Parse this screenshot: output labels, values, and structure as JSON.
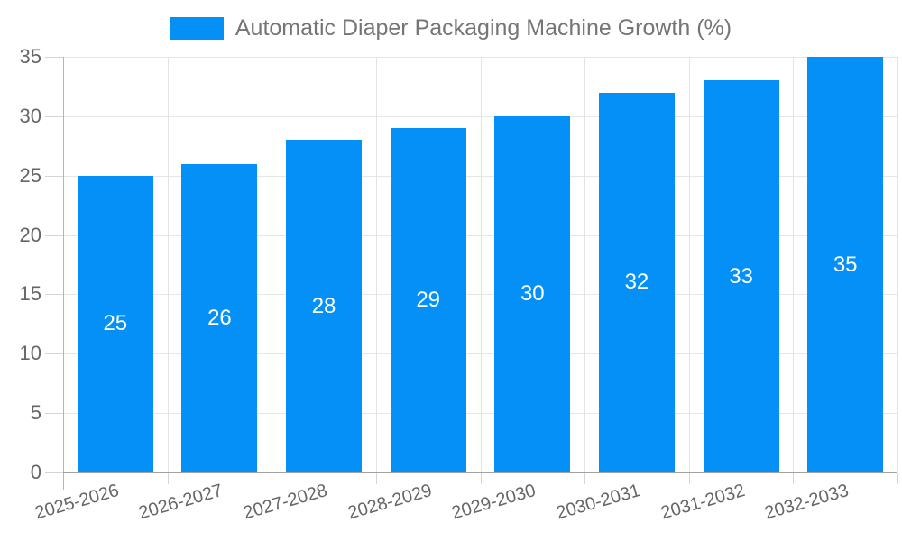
{
  "legend": {
    "items": [
      {
        "label": "Automatic Diaper Packaging Machine Growth (%)",
        "swatch_color": "#0590f8"
      }
    ]
  },
  "chart_data": {
    "type": "bar",
    "title": "Automatic Diaper Packaging Machine Growth (%)",
    "categories": [
      "2025-2026",
      "2026-2027",
      "2027-2028",
      "2028-2029",
      "2029-2030",
      "2030-2031",
      "2031-2032",
      "2032-2033"
    ],
    "series": [
      {
        "name": "Automatic Diaper Packaging Machine Growth (%)",
        "values": [
          25,
          26,
          28,
          29,
          30,
          32,
          33,
          35
        ],
        "color": "#0590f8"
      }
    ],
    "value_labels": [
      25,
      26,
      28,
      29,
      30,
      32,
      33,
      35
    ],
    "value_label_color": "#ffffff",
    "xlabel": "",
    "ylabel": "",
    "ylim": [
      0,
      35
    ],
    "yticks": [
      0,
      5,
      10,
      15,
      20,
      25,
      30,
      35
    ],
    "grid": "horizontal and vertical light gray gridlines",
    "legend_position": "top-center",
    "xtick_rotation_deg": -16,
    "colors": {
      "bar": "#0590f8",
      "axis_line": "#a2a2a2",
      "gridline": "#e6e6e6",
      "axis_label": "#666666",
      "legend_text": "#757575",
      "background": "#ffffff"
    }
  }
}
